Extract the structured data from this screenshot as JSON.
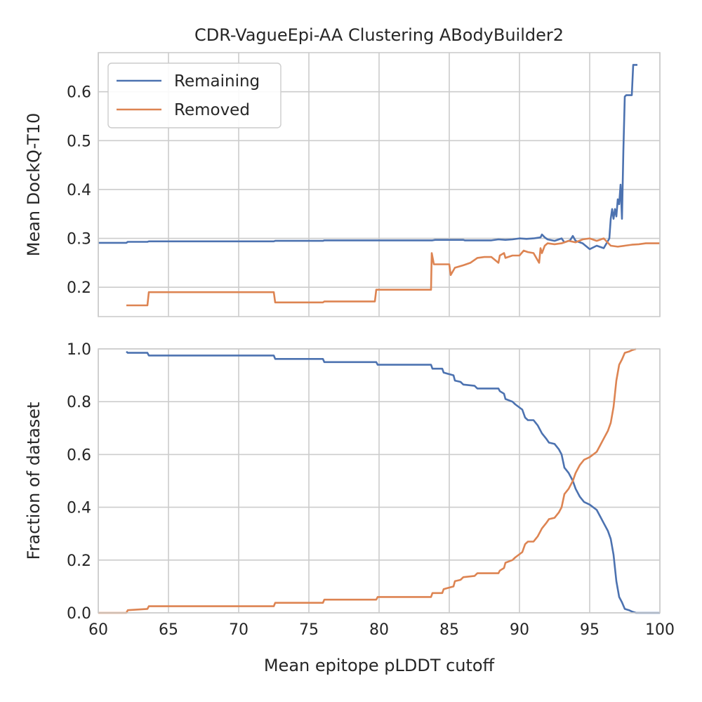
{
  "chart_data": [
    {
      "type": "line",
      "title": "CDR-VagueEpi-AA Clustering ABodyBuilder2",
      "xlabel": "",
      "ylabel": "Mean DockQ-T10",
      "xlim": [
        60,
        100
      ],
      "ylim": [
        0.14,
        0.68
      ],
      "xticks": [
        60,
        65,
        70,
        75,
        80,
        85,
        90,
        95,
        100
      ],
      "yticks": [
        0.2,
        0.3,
        0.4,
        0.5,
        0.6
      ],
      "ytick_labels": [
        "0.2",
        "0.3",
        "0.4",
        "0.5",
        "0.6"
      ],
      "grid": true,
      "legend": "upper-left",
      "series": [
        {
          "name": "Remaining",
          "color": "#4c72b0",
          "x": [
            60,
            62,
            62.1,
            63.5,
            63.6,
            72.5,
            72.6,
            76,
            76.1,
            80,
            83.8,
            84,
            86,
            86.1,
            88,
            88.5,
            89,
            89.5,
            90,
            90.5,
            91,
            91.5,
            91.6,
            91.8,
            92,
            92.5,
            93,
            93.2,
            93.6,
            93.8,
            94,
            94.5,
            95,
            95.5,
            96,
            96.2,
            96.4,
            96.5,
            96.6,
            96.7,
            96.8,
            96.9,
            97,
            97.1,
            97.2,
            97.3,
            97.4,
            97.5,
            97.6,
            97.7,
            98,
            98.1,
            98.4
          ],
          "values": [
            0.291,
            0.291,
            0.293,
            0.293,
            0.294,
            0.294,
            0.295,
            0.295,
            0.296,
            0.296,
            0.296,
            0.297,
            0.297,
            0.296,
            0.296,
            0.298,
            0.297,
            0.298,
            0.3,
            0.299,
            0.3,
            0.302,
            0.308,
            0.302,
            0.298,
            0.295,
            0.3,
            0.292,
            0.296,
            0.305,
            0.295,
            0.29,
            0.278,
            0.285,
            0.28,
            0.29,
            0.3,
            0.34,
            0.36,
            0.34,
            0.36,
            0.345,
            0.38,
            0.37,
            0.41,
            0.34,
            0.48,
            0.59,
            0.593,
            0.593,
            0.593,
            0.655,
            0.655
          ]
        },
        {
          "name": "Removed",
          "color": "#dd8452",
          "x": [
            62,
            63.5,
            63.6,
            72.5,
            72.6,
            76,
            76.1,
            79.7,
            79.8,
            83.7,
            83.75,
            83.85,
            83.9,
            85,
            85.1,
            85.3,
            85.4,
            86,
            86.5,
            87,
            87.5,
            88,
            88.5,
            88.6,
            88.9,
            89,
            89.5,
            90,
            90.3,
            90.6,
            91,
            91.4,
            91.5,
            91.6,
            91.8,
            92,
            92.5,
            93,
            93.5,
            94,
            94.5,
            95,
            95.5,
            96,
            96.5,
            97,
            97.5,
            98,
            98.5,
            99,
            100
          ],
          "values": [
            0.163,
            0.163,
            0.19,
            0.19,
            0.169,
            0.169,
            0.171,
            0.171,
            0.195,
            0.195,
            0.27,
            0.255,
            0.247,
            0.247,
            0.225,
            0.235,
            0.24,
            0.245,
            0.25,
            0.26,
            0.262,
            0.262,
            0.25,
            0.265,
            0.27,
            0.26,
            0.265,
            0.265,
            0.275,
            0.272,
            0.27,
            0.25,
            0.28,
            0.27,
            0.285,
            0.29,
            0.288,
            0.29,
            0.295,
            0.292,
            0.298,
            0.3,
            0.295,
            0.3,
            0.285,
            0.283,
            0.285,
            0.287,
            0.288,
            0.29,
            0.29
          ]
        }
      ]
    },
    {
      "type": "line",
      "title": "",
      "xlabel": "Mean epitope pLDDT cutoff",
      "ylabel": "Fraction of dataset",
      "xlim": [
        60,
        100
      ],
      "ylim": [
        0,
        1
      ],
      "xticks": [
        60,
        65,
        70,
        75,
        80,
        85,
        90,
        95,
        100
      ],
      "xtick_labels": [
        "60",
        "65",
        "70",
        "75",
        "80",
        "85",
        "90",
        "95",
        "100"
      ],
      "yticks": [
        0,
        0.2,
        0.4,
        0.6,
        0.8,
        1
      ],
      "ytick_labels": [
        "0.0",
        "0.2",
        "0.4",
        "0.6",
        "0.8",
        "1.0"
      ],
      "grid": true,
      "series": [
        {
          "name": "Remaining",
          "color": "#4c72b0",
          "x": [
            62,
            62.1,
            63.5,
            63.6,
            72.5,
            72.6,
            76,
            76.1,
            79.8,
            79.9,
            83.7,
            83.8,
            84.5,
            84.6,
            85.3,
            85.4,
            85.8,
            86,
            86.8,
            87,
            88.5,
            88.6,
            88.9,
            89,
            89.5,
            89.7,
            90.2,
            90.4,
            90.6,
            91,
            91.3,
            91.6,
            91.9,
            92.1,
            92.5,
            92.8,
            93,
            93.2,
            93.5,
            93.8,
            94,
            94.3,
            94.6,
            95,
            95.5,
            95.8,
            96,
            96.3,
            96.5,
            96.7,
            96.9,
            97.1,
            97.3,
            97.5,
            97.8,
            98.0,
            98.3,
            100
          ],
          "values": [
            0.99,
            0.985,
            0.985,
            0.975,
            0.975,
            0.962,
            0.962,
            0.95,
            0.95,
            0.94,
            0.94,
            0.925,
            0.925,
            0.91,
            0.9,
            0.88,
            0.875,
            0.865,
            0.86,
            0.85,
            0.85,
            0.84,
            0.83,
            0.81,
            0.8,
            0.79,
            0.77,
            0.74,
            0.73,
            0.73,
            0.71,
            0.68,
            0.66,
            0.645,
            0.64,
            0.62,
            0.6,
            0.55,
            0.53,
            0.5,
            0.47,
            0.44,
            0.42,
            0.41,
            0.39,
            0.36,
            0.34,
            0.31,
            0.28,
            0.22,
            0.12,
            0.06,
            0.04,
            0.015,
            0.01,
            0.005,
            0.0,
            0.0
          ]
        },
        {
          "name": "Removed",
          "color": "#dd8452",
          "x": [
            60,
            62,
            62.1,
            63.5,
            63.6,
            72.5,
            72.6,
            76,
            76.1,
            79.8,
            79.9,
            83.7,
            83.8,
            84.5,
            84.6,
            85.3,
            85.4,
            85.8,
            86,
            86.8,
            87,
            88.5,
            88.6,
            88.9,
            89,
            89.5,
            89.7,
            90.2,
            90.4,
            90.6,
            91,
            91.3,
            91.6,
            91.9,
            92.1,
            92.5,
            92.8,
            93,
            93.2,
            93.5,
            93.8,
            94,
            94.3,
            94.6,
            95,
            95.5,
            95.8,
            96,
            96.3,
            96.5,
            96.7,
            96.9,
            97.1,
            97.3,
            97.5,
            97.8,
            98.0,
            98.3
          ],
          "values": [
            0.0,
            0.0,
            0.01,
            0.015,
            0.025,
            0.025,
            0.038,
            0.038,
            0.05,
            0.05,
            0.06,
            0.06,
            0.075,
            0.075,
            0.09,
            0.1,
            0.12,
            0.125,
            0.135,
            0.14,
            0.15,
            0.15,
            0.16,
            0.17,
            0.19,
            0.2,
            0.21,
            0.23,
            0.26,
            0.27,
            0.27,
            0.29,
            0.32,
            0.34,
            0.355,
            0.36,
            0.38,
            0.4,
            0.45,
            0.47,
            0.5,
            0.53,
            0.56,
            0.58,
            0.59,
            0.61,
            0.64,
            0.66,
            0.69,
            0.72,
            0.78,
            0.88,
            0.94,
            0.96,
            0.985,
            0.99,
            0.995,
            1.0
          ]
        }
      ]
    }
  ]
}
